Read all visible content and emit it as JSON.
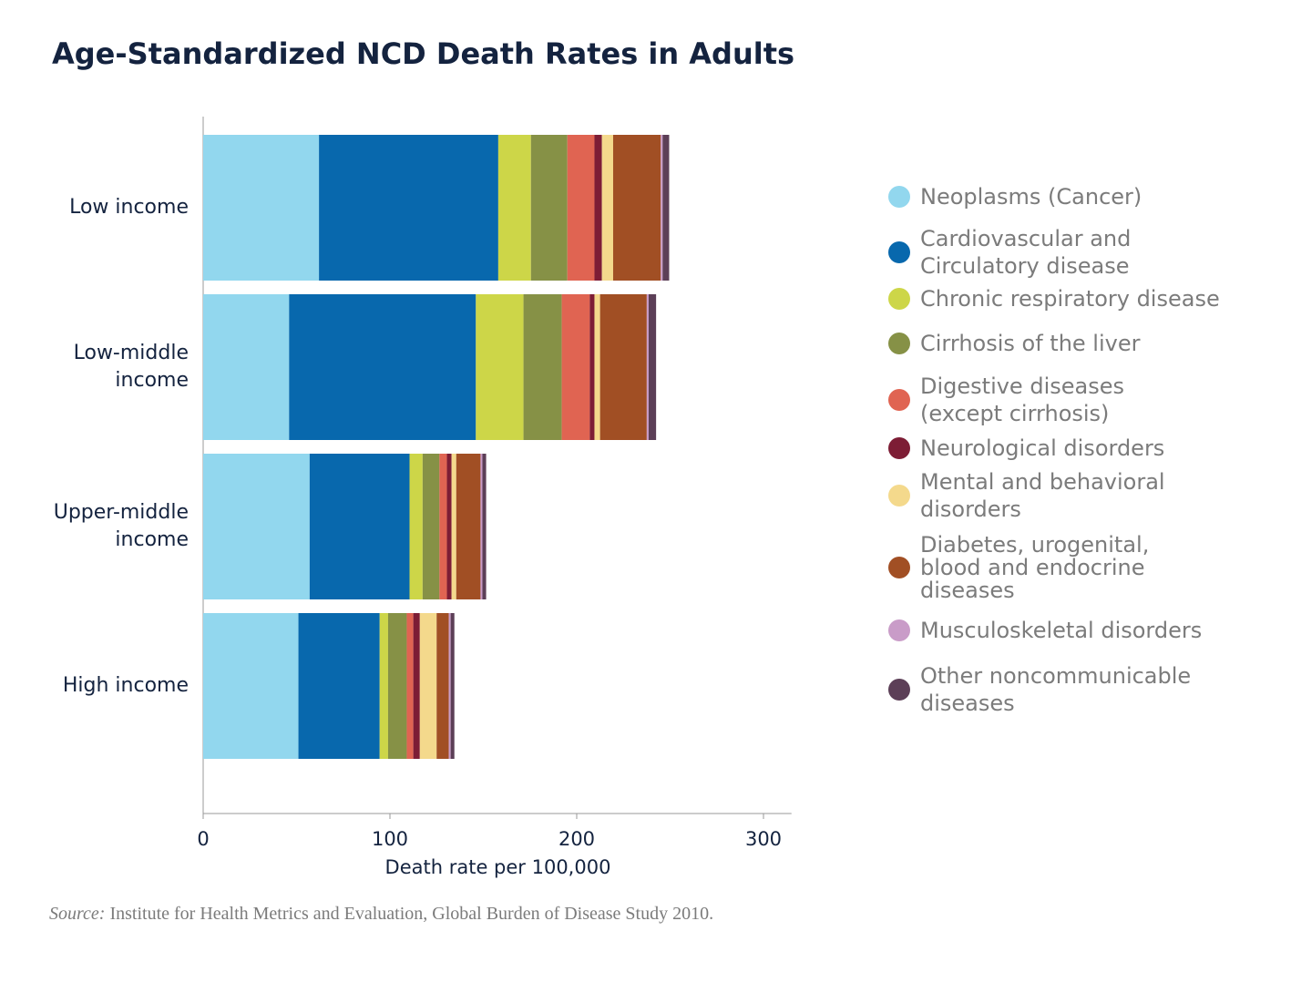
{
  "chart_data": {
    "type": "stacked-bar-horizontal",
    "title": "Age-Standardized NCD Death Rates in Adults",
    "categories": [
      "Low income",
      "Low-middle\nincome",
      "Upper-middle\nincome",
      "High income"
    ],
    "series": [
      {
        "name": "Neoplasms (Cancer)",
        "color": "#92d7ee",
        "values": [
          62,
          46,
          57,
          51
        ]
      },
      {
        "name": "Cardiovascular and\nCirculatory disease",
        "color": "#0868ad",
        "values": [
          96,
          100,
          53.5,
          43.5
        ]
      },
      {
        "name": "Chronic respiratory disease",
        "color": "#cdd648",
        "values": [
          17.5,
          25.5,
          7,
          4.5
        ]
      },
      {
        "name": "Cirrhosis of the liver",
        "color": "#869146",
        "values": [
          19.5,
          20.5,
          9,
          10
        ]
      },
      {
        "name": "Digestive diseases\n(except cirrhosis)",
        "color": "#e06452",
        "values": [
          14.5,
          15,
          4,
          3.5
        ]
      },
      {
        "name": "Neurological disorders",
        "color": "#7d1d35",
        "values": [
          4,
          2.5,
          2.5,
          3.5
        ]
      },
      {
        "name": "Mental and behavioral\ndisorders",
        "color": "#f4d98c",
        "values": [
          6,
          3,
          2.5,
          9
        ]
      },
      {
        "name": "Diabetes, urogenital,\nblood and endocrine\ndiseases",
        "color": "#a14f24",
        "values": [
          25.5,
          25,
          13,
          6.5
        ]
      },
      {
        "name": "Musculoskeletal disorders",
        "color": "#c99cc8",
        "values": [
          1,
          1,
          1,
          1
        ]
      },
      {
        "name": "Other noncommunicable\ndiseases",
        "color": "#5c3f57",
        "values": [
          3.5,
          4,
          2,
          2
        ]
      }
    ],
    "xlim": [
      0,
      315
    ],
    "xticks": [
      0,
      100,
      200,
      300
    ],
    "x_label": "Death rate per 100,000",
    "source_label": "Source:",
    "source": "Institute for Health Metrics and Evaluation, Global Burden of Disease Study 2010."
  }
}
